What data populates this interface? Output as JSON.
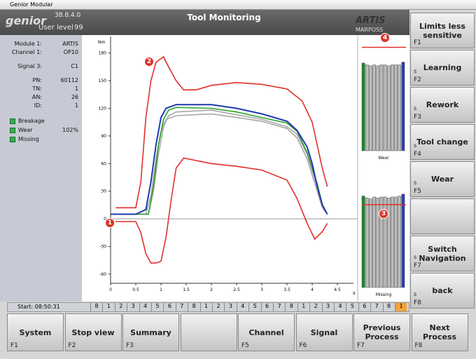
{
  "window": {
    "title": "Genior Modular"
  },
  "header": {
    "logo": "genior",
    "version": "38.8.4.0",
    "user_level_label": "User level",
    "user_level": "99",
    "title": "Tool Monitoring",
    "brand": "ARTIS",
    "brand_sub": "MARPOSS"
  },
  "info": {
    "rows": [
      [
        "Module 1:",
        "ARTIS"
      ],
      [
        "Channel 1:",
        "OP10"
      ],
      [
        "Signal 3:",
        "C1"
      ],
      [
        "PN:",
        "60112"
      ],
      [
        "TN:",
        "1"
      ],
      [
        "AN:",
        "26"
      ],
      [
        "ID:",
        "1"
      ]
    ]
  },
  "status": [
    {
      "label": "Breakage"
    },
    {
      "label": "Wear",
      "value": "102%"
    },
    {
      "label": "Missing"
    }
  ],
  "markers": [
    "1",
    "2",
    "3",
    "4"
  ],
  "chart": {
    "type": "line",
    "y_unit": "Nm",
    "x_unit": "s",
    "xlim": [
      0,
      4.65
    ],
    "ylim": [
      -70,
      195
    ],
    "xticks": [
      0,
      0.5,
      1,
      1.5,
      2,
      2.5,
      3,
      3.5,
      4,
      4.5
    ],
    "yticks": [
      -60,
      -30,
      0,
      30,
      60,
      90,
      120,
      150,
      180
    ],
    "series": [
      {
        "color": "#e0302a",
        "x": [
          0.1,
          0.5,
          0.6,
          0.7,
          0.8,
          0.9,
          1.05,
          1.15,
          1.3,
          1.45,
          1.7,
          2.0,
          2.5,
          3.0,
          3.5,
          3.8,
          4.0,
          4.1,
          4.2,
          4.3
        ],
        "values": [
          12,
          12,
          40,
          110,
          150,
          170,
          176,
          165,
          150,
          140,
          140,
          145,
          148,
          146,
          141,
          128,
          105,
          80,
          55,
          35
        ]
      },
      {
        "color": "#e0302a",
        "x": [
          0.1,
          0.5,
          0.6,
          0.7,
          0.8,
          0.9,
          1.0,
          1.1,
          1.2,
          1.3,
          1.45,
          2.0,
          2.5,
          3.0,
          3.5,
          3.7,
          3.9,
          4.05,
          4.2,
          4.3
        ],
        "values": [
          -3,
          -3,
          -15,
          -38,
          -48,
          -48,
          -46,
          -20,
          20,
          55,
          66,
          60,
          57,
          53,
          42,
          22,
          -5,
          -22,
          -14,
          -5
        ]
      },
      {
        "color": "#a8a8a8",
        "x": [
          0.5,
          0.7,
          0.8,
          0.9,
          1.0,
          1.1,
          1.3,
          2.0,
          2.5,
          3.0,
          3.5,
          3.7,
          3.9,
          4.1,
          4.2,
          4.3
        ],
        "values": [
          5,
          5,
          25,
          65,
          95,
          108,
          112,
          114,
          110,
          106,
          98,
          88,
          65,
          30,
          12,
          5
        ]
      },
      {
        "color": "#a8a8a8",
        "x": [
          0.5,
          0.75,
          0.85,
          0.95,
          1.05,
          1.15,
          1.3,
          2.0,
          2.5,
          3.0,
          3.5,
          3.7,
          3.9,
          4.1,
          4.2,
          4.3
        ],
        "values": [
          5,
          5,
          30,
          70,
          100,
          112,
          116,
          118,
          113,
          108,
          100,
          92,
          70,
          35,
          15,
          5
        ]
      },
      {
        "color": "#2aa02a",
        "x": [
          0.5,
          0.75,
          0.85,
          0.95,
          1.05,
          1.15,
          1.3,
          2.0,
          2.5,
          3.0,
          3.5,
          3.7,
          3.9,
          4.1,
          4.2,
          4.3
        ],
        "values": [
          5,
          5,
          35,
          80,
          108,
          118,
          121,
          120,
          116,
          110,
          104,
          95,
          72,
          38,
          16,
          5
        ]
      },
      {
        "color": "#2038b0",
        "x": [
          0.0,
          0.5,
          0.7,
          0.8,
          0.9,
          1.0,
          1.1,
          1.3,
          2.0,
          2.5,
          3.0,
          3.5,
          3.7,
          3.9,
          4.0,
          4.1,
          4.2,
          4.3
        ],
        "values": [
          5,
          5,
          10,
          40,
          80,
          110,
          120,
          124,
          124,
          120,
          114,
          106,
          96,
          78,
          60,
          35,
          15,
          5
        ]
      }
    ]
  },
  "mini_charts": {
    "ylim": [
      0,
      120
    ],
    "colors": [
      "#1a8a2a",
      "#bcbcbc",
      "#2a3fb0"
    ],
    "charts": [
      {
        "label": "Wear",
        "limit": 112,
        "values": [
          95,
          93,
          92,
          93,
          92,
          93,
          93,
          92,
          93,
          93,
          93,
          96
        ]
      },
      {
        "label": "Missing",
        "limit": 87,
        "values": [
          96,
          94,
          93,
          95,
          94,
          95,
          95,
          94,
          95,
          95,
          96,
          98
        ]
      }
    ]
  },
  "side_buttons": [
    {
      "label": "Limits less sensitive",
      "key": "F1"
    },
    {
      "label": "Learning",
      "prefix": "s",
      "key": "F2"
    },
    {
      "label": "Rework",
      "prefix": "s",
      "key": "F3"
    },
    {
      "label": "Tool change",
      "prefix": "s",
      "key": "F4"
    },
    {
      "label": "Wear",
      "prefix": "s",
      "key": "F5"
    },
    {},
    {
      "label": "Switch Navigation",
      "prefix": "s",
      "key": "F7"
    },
    {
      "label": "back",
      "prefix": "s",
      "key": "F8"
    }
  ],
  "timeline": {
    "start": "Start: 08:50:31",
    "numbers": [
      8,
      1,
      2,
      3,
      4,
      5,
      6,
      7,
      8,
      1,
      2,
      3,
      4,
      5,
      6,
      7,
      8,
      1,
      2,
      3,
      4,
      5,
      6,
      7,
      8,
      1
    ]
  },
  "bottom_buttons": [
    {
      "label": "System",
      "key": "F1"
    },
    {
      "label": "Stop view",
      "key": "F2"
    },
    {
      "label": "Summary",
      "key": "F3"
    },
    {},
    {
      "label": "Channel",
      "key": "F5"
    },
    {
      "label": "Signal",
      "key": "F6"
    },
    {
      "label": "Previous Process",
      "key": "F7"
    },
    {
      "label": "Next Process",
      "key": "F8"
    }
  ]
}
